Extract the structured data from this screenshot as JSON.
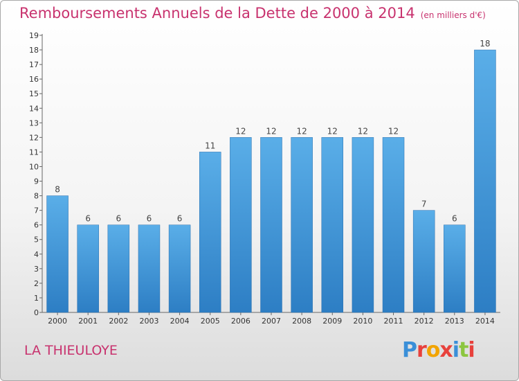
{
  "header": {
    "title": "Remboursements Annuels de la Dette de 2000 à 2014",
    "unit": "(en milliers d'€)"
  },
  "footer": {
    "commune": "LA THIEULOYE",
    "brand": [
      "P",
      "r",
      "o",
      "x",
      "i",
      "t",
      "i"
    ],
    "brand_colors": [
      "#3a8fd8",
      "#e8413c",
      "#f2a400",
      "#e8413c",
      "#3a8fd8",
      "#8cc63f",
      "#e8413c"
    ]
  },
  "chart_data": {
    "type": "bar",
    "categories": [
      "2000",
      "2001",
      "2002",
      "2003",
      "2004",
      "2005",
      "2006",
      "2007",
      "2008",
      "2009",
      "2010",
      "2011",
      "2012",
      "2013",
      "2014"
    ],
    "values": [
      8,
      6,
      6,
      6,
      6,
      11,
      12,
      12,
      12,
      12,
      12,
      12,
      7,
      6,
      18
    ],
    "ylim": [
      0,
      19
    ],
    "yticks": [
      0,
      1,
      2,
      3,
      4,
      5,
      6,
      7,
      8,
      9,
      10,
      11,
      12,
      13,
      14,
      15,
      16,
      17,
      18,
      19
    ],
    "grid": false,
    "legend": "none",
    "bar_color_top": "#5aaee8",
    "bar_color_bottom": "#2d7ec4"
  }
}
